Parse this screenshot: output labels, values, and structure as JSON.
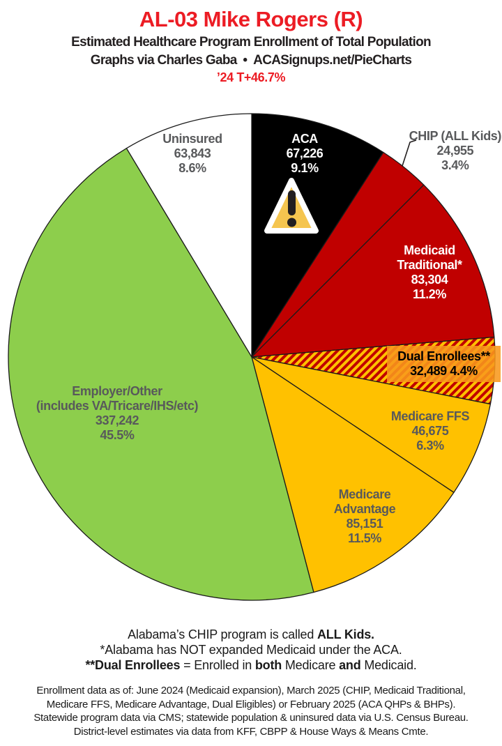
{
  "header": {
    "title": "AL-03 Mike Rogers (R)",
    "subtitle": "Estimated Healthcare Program Enrollment of Total Population",
    "credit": "Graphs via Charles Gaba • ACASignups.net/PieCharts",
    "trend": "’24 T+46.7%",
    "title_color": "#EC1C24"
  },
  "chart_data": {
    "type": "pie",
    "title": "AL-03 Mike Rogers (R) — Estimated Healthcare Program Enrollment of Total Population",
    "units": "people",
    "start_angle_deg": 0,
    "direction": "clockwise",
    "stroke_color": "#1a1a1a",
    "hatch_stripe_colors": [
      "#C00000",
      "#FFC100"
    ],
    "dual_label_bg": "#F8981D",
    "slices": [
      {
        "label": "ACA",
        "value": 67226,
        "display_value": "67,226",
        "pct": 9.1,
        "display_pct": "9.1%",
        "color": "#000000",
        "label_color": "#FFFFFF"
      },
      {
        "label": "CHIP (ALL Kids)",
        "value": 24955,
        "display_value": "24,955",
        "pct": 3.4,
        "display_pct": "3.4%",
        "color": "#C00000",
        "label_color": "#58595B"
      },
      {
        "label": "Medicaid Traditional*",
        "value": 83304,
        "display_value": "83,304",
        "pct": 11.2,
        "display_pct": "11.2%",
        "color": "#C00000",
        "label_color": "#FFFFFF"
      },
      {
        "label": "Dual Enrollees**",
        "value": 32489,
        "display_value": "32,489",
        "pct": 4.4,
        "display_pct": "4.4%",
        "pattern": "hatch",
        "label_color": "#000000"
      },
      {
        "label": "Medicare FFS",
        "value": 46675,
        "display_value": "46,675",
        "pct": 6.3,
        "display_pct": "6.3%",
        "color": "#FFC100",
        "label_color": "#58595B"
      },
      {
        "label": "Medicare Advantage",
        "value": 85151,
        "display_value": "85,151",
        "pct": 11.5,
        "display_pct": "11.5%",
        "color": "#FFC100",
        "label_color": "#58595B"
      },
      {
        "label": "Employer/Other",
        "sublabel": "(includes VA/Tricare/IHS/etc)",
        "value": 337242,
        "display_value": "337,242",
        "pct": 45.5,
        "display_pct": "45.5%",
        "color": "#8DCE4C",
        "label_color": "#58595B"
      },
      {
        "label": "Uninsured",
        "value": 63843,
        "display_value": "63,843",
        "pct": 8.6,
        "display_pct": "8.6%",
        "color": "#FFFFFF",
        "label_color": "#58595B"
      }
    ]
  },
  "icons": {
    "warning": {
      "fill": "#F5C54F",
      "border": "#FFFFFF",
      "glyph_color": "#231F20"
    }
  },
  "footer": {
    "notes": [
      [
        {
          "t": "Alabama’s CHIP program is called ",
          "b": false
        },
        {
          "t": "ALL Kids.",
          "b": true
        }
      ],
      [
        {
          "t": "*Alabama has NOT expanded Medicaid under the ACA.",
          "b": false
        }
      ],
      [
        {
          "t": "**Dual Enrollees",
          "b": true
        },
        {
          "t": " = Enrolled in ",
          "b": false
        },
        {
          "t": "both",
          "b": true
        },
        {
          "t": " Medicare ",
          "b": false
        },
        {
          "t": "and",
          "b": true
        },
        {
          "t": " Medicaid.",
          "b": false
        }
      ]
    ],
    "fine_print": [
      "Enrollment data as of: June 2024 (Medicaid expansion), March 2025 (CHIP, Medicaid Traditional,",
      "Medicare FFS, Medicare Advantage, Dual Eligibles) or February 2025 (ACA QHPs & BHPs).",
      "Statewide program data via CMS; statewide population & uninsured data via U.S. Census Bureau.",
      "District-level estimates via data from KFF, CBPP & House Ways & Means Cmte."
    ]
  }
}
